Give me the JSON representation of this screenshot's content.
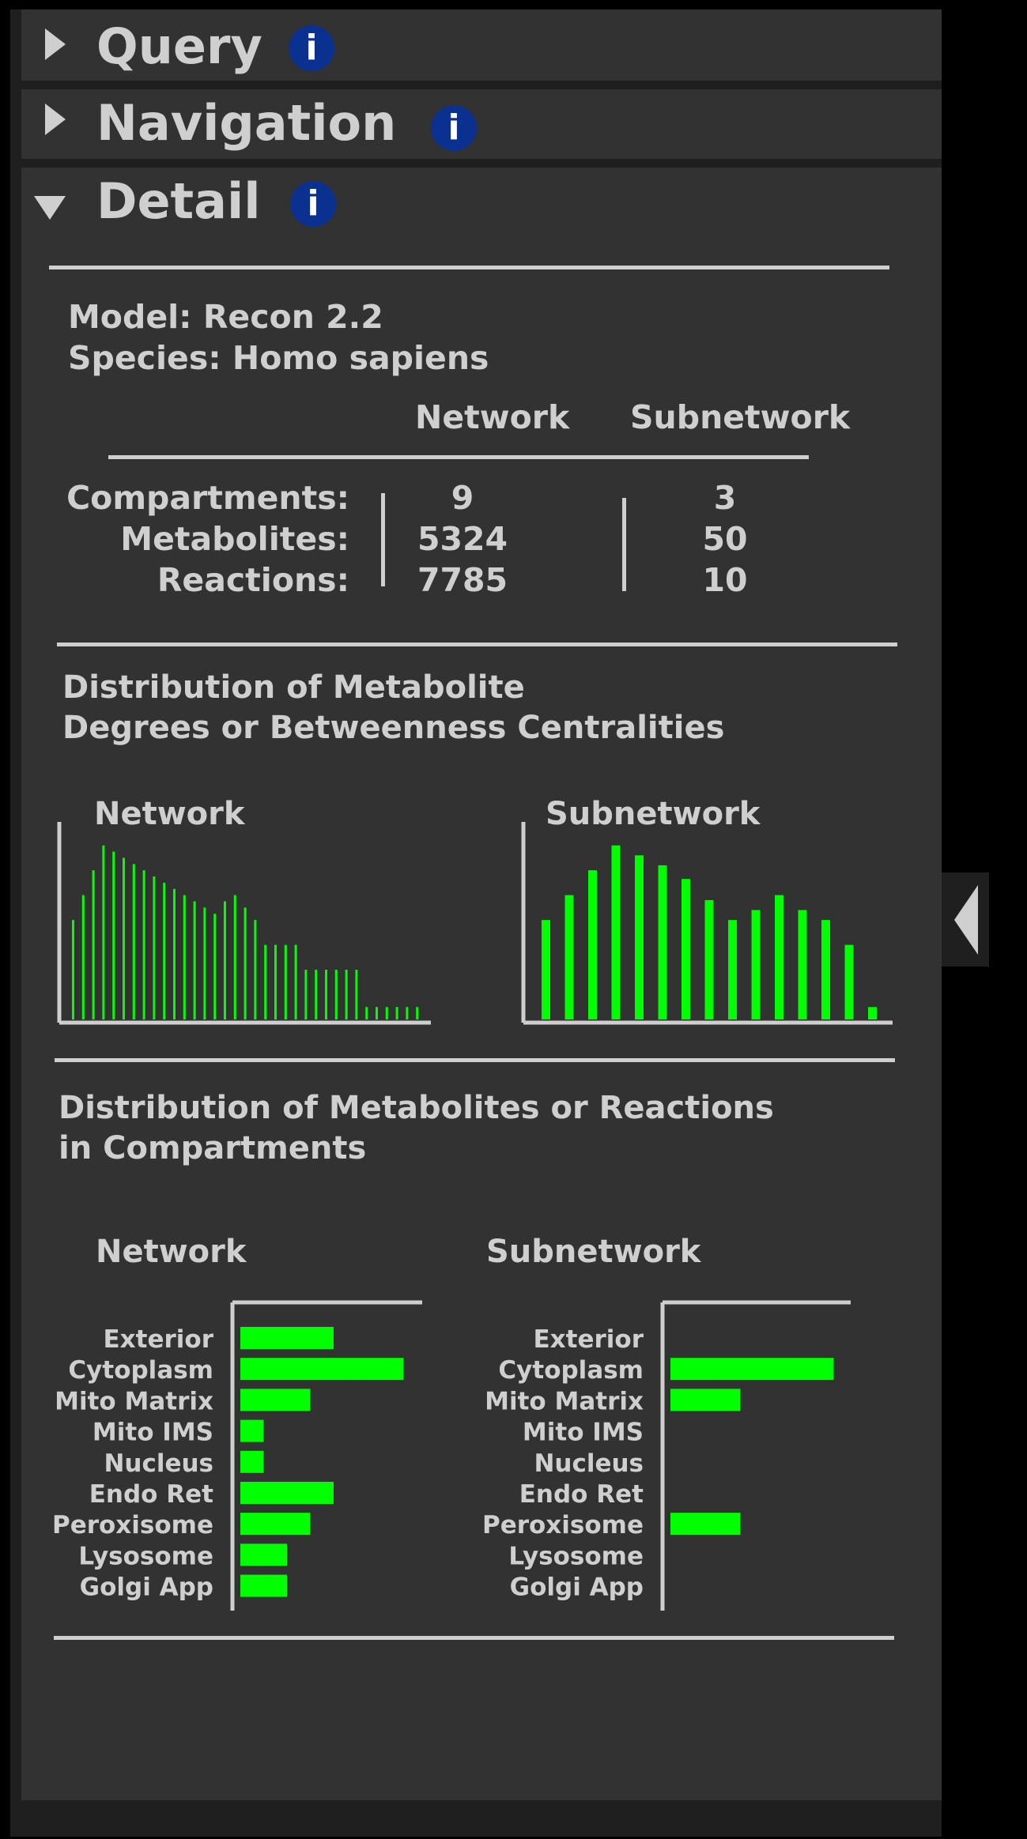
{
  "sections": {
    "query": {
      "title": "Query",
      "info": "i"
    },
    "navigation": {
      "title": "Navigation",
      "info": "i"
    },
    "detail": {
      "title": "Detail",
      "info": "i"
    }
  },
  "model": {
    "model_line": "Model: Recon 2.2",
    "species_line": "Species: Homo sapiens"
  },
  "summary": {
    "col_network": "Network",
    "col_subnetwork": "Subnetwork",
    "rows": [
      {
        "label": "Compartments:",
        "network": "9",
        "subnetwork": "3"
      },
      {
        "label": "Metabolites:",
        "network": "5324",
        "subnetwork": "50"
      },
      {
        "label": "Reactions:",
        "network": "7785",
        "subnetwork": "10"
      }
    ]
  },
  "degree_section": {
    "title_line1": "Distribution of Metabolite",
    "title_line2": "Degrees or Betweenness Centralities"
  },
  "compartment_section": {
    "title_line1": "Distribution of Metabolites or Reactions",
    "title_line2": "in Compartments"
  },
  "colors": {
    "bar": "#00ff00",
    "info": "#0a3190",
    "panel": "#323232",
    "text": "#cfcfcf"
  },
  "chart_data": [
    {
      "type": "bar",
      "title": "Network",
      "values": [
        8.0,
        10.0,
        12.0,
        14.0,
        13.5,
        13.0,
        12.5,
        12.0,
        11.5,
        11.0,
        10.5,
        10.0,
        9.5,
        9.0,
        8.5,
        9.5,
        10.0,
        9.0,
        8.0,
        6.0,
        6.0,
        6.0,
        6.0,
        4.0,
        4.0,
        4.0,
        4.0,
        4.0,
        4.0,
        1.0,
        1.0,
        1.0,
        1.0,
        1.0,
        1.0
      ],
      "ylim": [
        0,
        15
      ]
    },
    {
      "type": "bar",
      "title": "Subnetwork",
      "values": [
        8.0,
        10.0,
        12.0,
        14.0,
        13.2,
        12.4,
        11.3,
        9.6,
        8.0,
        8.8,
        10.0,
        8.8,
        8.0,
        6.0,
        1.0
      ],
      "ylim": [
        0,
        15
      ]
    },
    {
      "type": "bar",
      "orientation": "horizontal",
      "title": "Network",
      "categories": [
        "Exterior",
        "Cytoplasm",
        "Mito Matrix",
        "Mito IMS",
        "Nucleus",
        "Endo Ret",
        "Peroxisome",
        "Lysosome",
        "Golgi App"
      ],
      "values": [
        4,
        7,
        3,
        1,
        1,
        4,
        3,
        2,
        2
      ],
      "xlim": [
        0,
        7
      ]
    },
    {
      "type": "bar",
      "orientation": "horizontal",
      "title": "Subnetwork",
      "categories": [
        "Exterior",
        "Cytoplasm",
        "Mito Matrix",
        "Mito IMS",
        "Nucleus",
        "Endo Ret",
        "Peroxisome",
        "Lysosome",
        "Golgi App"
      ],
      "values": [
        0,
        7,
        3,
        0,
        0,
        0,
        3,
        0,
        0
      ],
      "xlim": [
        0,
        7
      ]
    }
  ]
}
